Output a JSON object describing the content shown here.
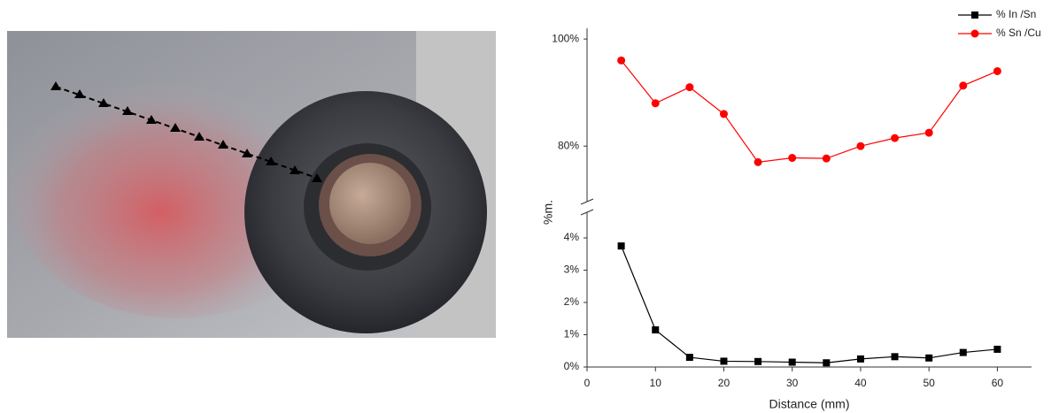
{
  "chart_data": {
    "type": "line",
    "x_label": "Distance (mm)",
    "y_label": "%m.",
    "x": [
      5,
      10,
      15,
      20,
      25,
      30,
      35,
      40,
      45,
      50,
      55,
      60
    ],
    "xlim": [
      0,
      65
    ],
    "xticks": [
      0,
      10,
      20,
      30,
      40,
      50,
      60
    ],
    "ylim": [
      0,
      4.85
    ],
    "yticks": [
      {
        "value": 0,
        "label": "0%"
      },
      {
        "value": 1,
        "label": "1%"
      },
      {
        "value": 2,
        "label": "2%"
      },
      {
        "value": 3,
        "label": "3%"
      },
      {
        "value": 4,
        "label": "4%"
      }
    ],
    "y2lim": [
      69.3,
      102
    ],
    "y2ticks": [
      {
        "value": 80,
        "label": "80%"
      },
      {
        "value": 100,
        "label": "100%"
      }
    ],
    "legend": "upper right",
    "series": [
      {
        "name": "% In /Sn",
        "color": "#000000",
        "marker": "square",
        "values": [
          3.75,
          1.15,
          0.3,
          0.18,
          0.17,
          0.15,
          0.13,
          0.25,
          0.32,
          0.28,
          0.45,
          0.55
        ]
      },
      {
        "name": "% Sn /Cu",
        "color": "#ff0000",
        "marker": "circle",
        "axis": "y2",
        "values": [
          96,
          88,
          91,
          86,
          77,
          77.8,
          77.7,
          80,
          81.5,
          82.5,
          91.3,
          94
        ]
      }
    ]
  }
}
